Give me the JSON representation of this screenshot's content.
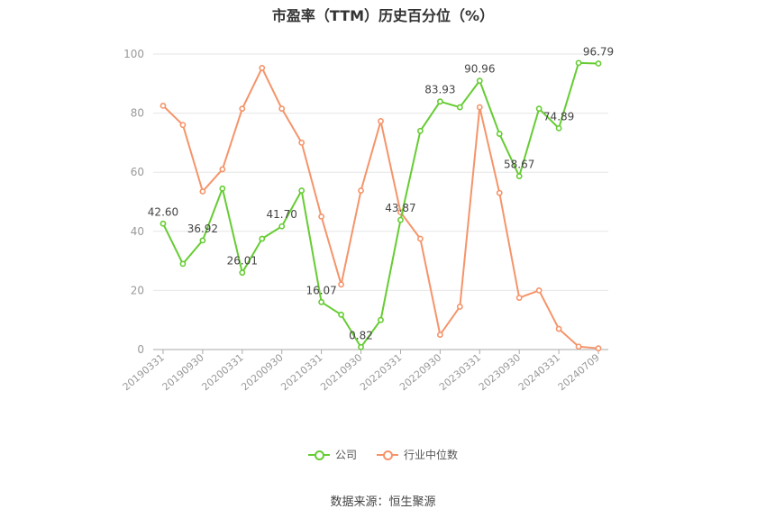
{
  "title": "市盈率（TTM）历史百分位（%）",
  "source": "数据来源：恒生聚源",
  "colors": {
    "company": "#66cc33",
    "industry": "#f5946a",
    "grid": "#e6e6e6",
    "axis": "#999999"
  },
  "chart_data": {
    "type": "line",
    "title": "市盈率（TTM）历史百分位（%）",
    "xlabel": "",
    "ylabel": "",
    "ylim": [
      0,
      100
    ],
    "yticks": [
      0,
      20,
      40,
      60,
      80,
      100
    ],
    "grid": true,
    "legend_position": "bottom",
    "x": [
      "20190331",
      "20190630",
      "20190930",
      "20191231",
      "20200331",
      "20200630",
      "20200930",
      "20201231",
      "20210331",
      "20210630",
      "20210930",
      "20211231",
      "20220331",
      "20220630",
      "20220930",
      "20221231",
      "20230331",
      "20230630",
      "20230930",
      "20231231",
      "20240331",
      "20240630",
      "20240709"
    ],
    "x_tick_labels": [
      "20190331",
      "20190930",
      "20200331",
      "20200930",
      "20210331",
      "20210930",
      "20220331",
      "20220930",
      "20230331",
      "20230930",
      "20240331",
      "20240709"
    ],
    "series": [
      {
        "name": "公司",
        "values": [
          42.6,
          29,
          36.92,
          54.5,
          26.01,
          37.5,
          41.7,
          53.8,
          16.07,
          11.8,
          0.82,
          10,
          43.87,
          74,
          83.93,
          82,
          90.96,
          73,
          58.67,
          81.5,
          74.89,
          97,
          96.79
        ],
        "data_labels": {
          "0": "42.60",
          "2": "36.92",
          "4": "26.01",
          "6": "41.70",
          "8": "16.07",
          "10": "0.82",
          "12": "43.87",
          "14": "83.93",
          "16": "90.96",
          "18": "58.67",
          "20": "74.89",
          "22": "96.79"
        }
      },
      {
        "name": "行业中位数",
        "values": [
          82.5,
          76,
          53.5,
          61,
          81.5,
          95.3,
          81.5,
          70,
          45,
          22,
          53.8,
          77.3,
          46.5,
          37.5,
          5,
          14.5,
          82,
          53,
          17.5,
          20,
          7,
          1,
          0.4
        ]
      }
    ]
  }
}
